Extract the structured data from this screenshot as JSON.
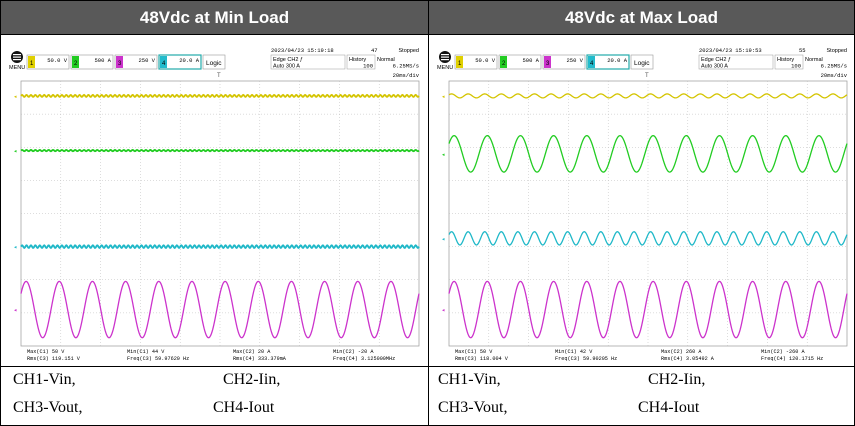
{
  "panels": [
    {
      "title": "48Vdc at Min Load",
      "timestamp": "2023/04/23 15:19:18",
      "acq_count": "47",
      "status": "Stopped",
      "trigger": "Edge CH2 ƒ",
      "trigger_level": "Auto 300 A",
      "history_label": "History",
      "history_value": "100",
      "mode_label": "Normal",
      "sample_rate": "6.25MS/s",
      "timebase": "20ms/div",
      "channels": [
        {
          "num": "1",
          "scale": "50.0 V",
          "color": "#e0d000"
        },
        {
          "num": "2",
          "scale": "500 A",
          "color": "#22cc22"
        },
        {
          "num": "3",
          "scale": "250 V",
          "color": "#cc33cc"
        },
        {
          "num": "4",
          "scale": "20.0 A",
          "color": "#22bbcc"
        }
      ],
      "logic_label": "Logic",
      "menu_label": "MENU",
      "measurements": [
        [
          "Max(C1)  50 V",
          "Min(C1)  44 V",
          "Max(C2)  20 A",
          "Min(C2)  -20 A"
        ],
        [
          "Rms(C3)  119.151 V",
          "Freq(C3)  59.97620 Hz",
          "Rms(C4)  333.379mA",
          "Freq(C4)  3.125000MHz"
        ]
      ],
      "captions": [
        [
          "CH1-Vin,",
          "CH2-Iin,"
        ],
        [
          "CH3-Vout,",
          "CH4-Iout"
        ]
      ]
    },
    {
      "title": "48Vdc at Max Load",
      "timestamp": "2023/04/23 15:19:53",
      "acq_count": "55",
      "status": "Stopped",
      "trigger": "Edge CH2 ƒ",
      "trigger_level": "Auto 300 A",
      "history_label": "History",
      "history_value": "100",
      "mode_label": "Normal",
      "sample_rate": "6.25MS/s",
      "timebase": "20ms/div",
      "channels": [
        {
          "num": "1",
          "scale": "50.0 V",
          "color": "#e0d000"
        },
        {
          "num": "2",
          "scale": "500 A",
          "color": "#22cc22"
        },
        {
          "num": "3",
          "scale": "250 V",
          "color": "#cc33cc"
        },
        {
          "num": "4",
          "scale": "20.0 A",
          "color": "#22bbcc"
        }
      ],
      "logic_label": "Logic",
      "menu_label": "MENU",
      "measurements": [
        [
          "Max(C1)  50 V",
          "Min(C1)  42 V",
          "Max(C2)  260 A",
          "Min(C2)  -260 A"
        ],
        [
          "Rms(C3)  118.004 V",
          "Freq(C3)  59.90205 Hz",
          "Rms(C4)  3.05492 A",
          "Freq(C4)  120.1715 Hz"
        ]
      ],
      "captions": [
        [
          "CH1-Vin,",
          "CH2-Iin,"
        ],
        [
          "CH3-Vout,",
          "CH4-Iout"
        ]
      ]
    }
  ],
  "chart_data": [
    {
      "type": "line",
      "title": "48Vdc at Min Load",
      "timebase": "20ms/div",
      "x_divisions": 10,
      "y_divisions": 8,
      "grid": true,
      "series": [
        {
          "name": "CH1-Vin",
          "kind": "dc",
          "level_div": 3.55,
          "ripple_div": 0.03,
          "cycles": 0,
          "color": "#d4c400"
        },
        {
          "name": "CH2-Iin",
          "kind": "dc",
          "level_div": 1.9,
          "ripple_div": 0.02,
          "cycles": 0,
          "color": "#22cc22"
        },
        {
          "name": "CH4-Iout",
          "kind": "dc",
          "level_div": -1.0,
          "ripple_div": 0.04,
          "cycles": 0,
          "color": "#1fb8c8"
        },
        {
          "name": "CH3-Vout",
          "kind": "sine",
          "level_div": -2.9,
          "amp_div": 0.85,
          "cycles": 12,
          "color": "#cc33cc"
        }
      ]
    },
    {
      "type": "line",
      "title": "48Vdc at Max Load",
      "timebase": "20ms/div",
      "x_divisions": 10,
      "y_divisions": 8,
      "grid": true,
      "series": [
        {
          "name": "CH1-Vin",
          "kind": "ripple",
          "level_div": 3.55,
          "amp_div": 0.06,
          "cycles": 24,
          "color": "#d4c400"
        },
        {
          "name": "CH2-Iin",
          "kind": "sine",
          "level_div": 1.8,
          "amp_div": 0.55,
          "cycles": 12,
          "color": "#22cc22"
        },
        {
          "name": "CH4-Iout",
          "kind": "sine",
          "level_div": -0.75,
          "amp_div": 0.2,
          "cycles": 24,
          "color": "#1fb8c8"
        },
        {
          "name": "CH3-Vout",
          "kind": "sine",
          "level_div": -2.9,
          "amp_div": 0.85,
          "cycles": 12,
          "color": "#cc33cc"
        }
      ]
    }
  ]
}
